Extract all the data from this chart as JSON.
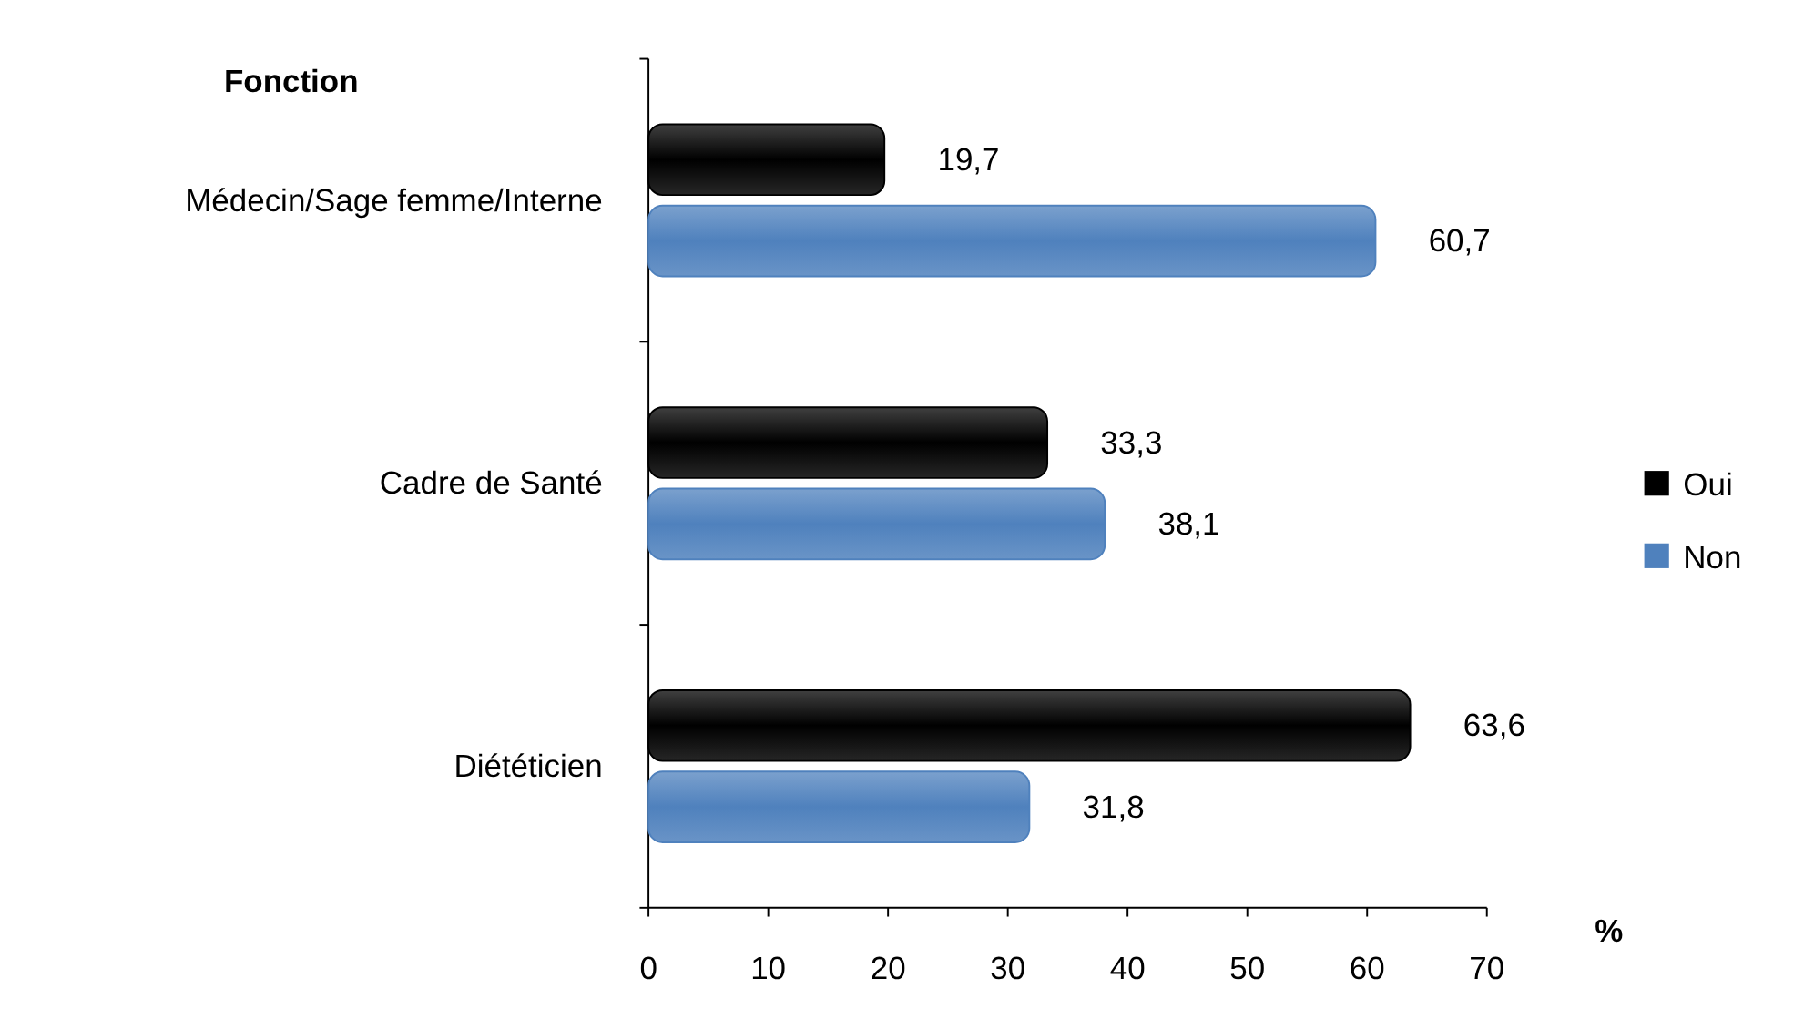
{
  "chart_data": {
    "type": "bar",
    "orientation": "horizontal",
    "ylabel": "Fonction",
    "xlabel": "%",
    "categories": [
      "Médecin/Sage femme/Interne",
      "Cadre de Santé",
      "Diététicien"
    ],
    "series": [
      {
        "name": "Oui",
        "color": "#000000",
        "values": [
          19.7,
          33.3,
          63.6
        ],
        "value_labels": [
          "19,7",
          "33,3",
          "63,6"
        ]
      },
      {
        "name": "Non",
        "color": "#4f81bd",
        "values": [
          60.7,
          38.1,
          31.8
        ],
        "value_labels": [
          "60,7",
          "38,1",
          "31,8"
        ]
      }
    ],
    "xlim": [
      0,
      70
    ],
    "xticks": [
      0,
      10,
      20,
      30,
      40,
      50,
      60,
      70
    ],
    "grid": false,
    "legend": "right"
  }
}
